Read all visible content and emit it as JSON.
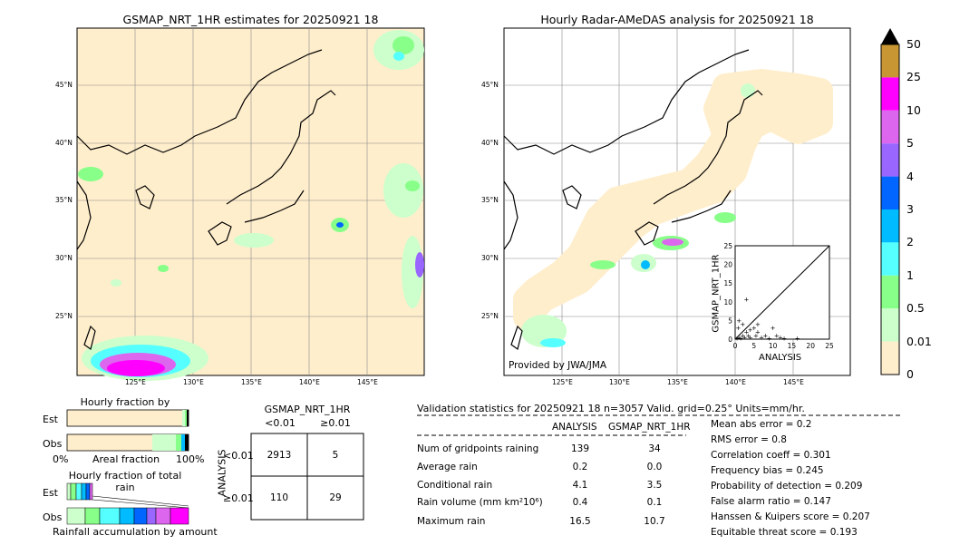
{
  "left_map": {
    "title": "GSMAP_NRT_1HR estimates for 20250921 18",
    "lat_labels": [
      "45°N",
      "40°N",
      "35°N",
      "30°N",
      "25°N"
    ],
    "lon_labels": [
      "125°E",
      "130°E",
      "135°E",
      "140°E",
      "145°E"
    ]
  },
  "right_map": {
    "title": "Hourly Radar-AMeDAS analysis for 20250921 18",
    "lat_labels": [
      "45°N",
      "40°N",
      "35°N",
      "30°N",
      "25°N"
    ],
    "lon_labels": [
      "125°E",
      "130°E",
      "135°E",
      "140°E",
      "145°E"
    ],
    "credit": "Provided by JWA/JMA"
  },
  "colorbar": {
    "labels": [
      "50",
      "25",
      "10",
      "5",
      "4",
      "3",
      "2",
      "1",
      "0.5",
      "0.01",
      "0"
    ],
    "colors": [
      "#c89632",
      "#ff00ff",
      "#dd66ee",
      "#9966ff",
      "#0066ff",
      "#00bbff",
      "#55ffff",
      "#88ff88",
      "#ccffcc",
      "#ffeecc"
    ],
    "extend_color": "#000000"
  },
  "occurrence": {
    "title": "Hourly fraction by occurence",
    "row_labels": [
      "Est",
      "Obs"
    ],
    "axis_left": "0%",
    "axis_mid": "Areal fraction",
    "axis_right": "100%"
  },
  "total_rain": {
    "title": "Hourly fraction of total rain",
    "row_labels": [
      "Est",
      "Obs"
    ],
    "footer": "Rainfall accumulation by amount"
  },
  "contingency": {
    "title": "GSMAP_NRT_1HR",
    "col_labels": [
      "<0.01",
      "≥0.01"
    ],
    "row_axis": "ANALYSIS",
    "row_labels": [
      "<0.01",
      "≥0.01"
    ],
    "cells": [
      [
        "2913",
        "5"
      ],
      [
        "110",
        "29"
      ]
    ]
  },
  "validation": {
    "header": "Validation statistics for 20250921 18  n=3057 Valid. grid=0.25° Units=mm/hr.",
    "col_analysis": "ANALYSIS",
    "col_gsmap": "GSMAP_NRT_1HR",
    "rows": [
      {
        "label": "Num of gridpoints raining",
        "analysis": "139",
        "gsmap": "34"
      },
      {
        "label": "Average rain",
        "analysis": "0.2",
        "gsmap": "0.0"
      },
      {
        "label": "Conditional rain",
        "analysis": "4.1",
        "gsmap": "3.5"
      },
      {
        "label": "Rain volume (mm km²10⁶)",
        "analysis": "0.4",
        "gsmap": "0.1"
      },
      {
        "label": "Maximum rain",
        "analysis": "16.5",
        "gsmap": "10.7"
      }
    ],
    "scores": [
      "Mean abs error =    0.2",
      "RMS error =    0.8",
      "Correlation coeff =  0.301",
      "Frequency bias =  0.245",
      "Probability of detection =  0.209",
      "False alarm ratio =  0.147",
      "Hanssen & Kuipers score =  0.207",
      "Equitable threat score =  0.193"
    ]
  },
  "chart_data": {
    "type": "scatter",
    "title": "",
    "xlabel": "ANALYSIS",
    "ylabel": "GSMAP_NRT_1HR",
    "xlim": [
      0,
      25
    ],
    "ylim": [
      0,
      25
    ],
    "ticks": [
      "0",
      "5",
      "10",
      "15",
      "20",
      "25"
    ],
    "points": [
      [
        0.5,
        0.3
      ],
      [
        1,
        0.5
      ],
      [
        1.5,
        0.2
      ],
      [
        2,
        1
      ],
      [
        2.5,
        0.5
      ],
      [
        3,
        2
      ],
      [
        3.5,
        1
      ],
      [
        4,
        0.5
      ],
      [
        5,
        3
      ],
      [
        5.5,
        1
      ],
      [
        6,
        2
      ],
      [
        7,
        0.5
      ],
      [
        8,
        1
      ],
      [
        9,
        0.2
      ],
      [
        10,
        3
      ],
      [
        11,
        1
      ],
      [
        12,
        0.5
      ],
      [
        13,
        0.3
      ],
      [
        16.5,
        0.3
      ],
      [
        3,
        10.7
      ],
      [
        1,
        5
      ],
      [
        2,
        4
      ],
      [
        4,
        2.5
      ],
      [
        0.8,
        3
      ],
      [
        6,
        4
      ]
    ]
  }
}
